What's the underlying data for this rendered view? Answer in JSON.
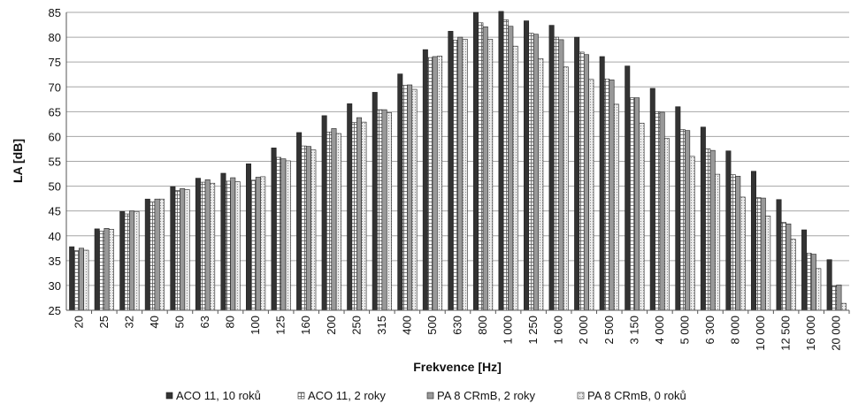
{
  "chart_data": {
    "type": "bar",
    "title": "",
    "xlabel": "Frekvence [Hz]",
    "ylabel": "LA [dB]",
    "ylim": [
      25,
      85
    ],
    "yticks": [
      25,
      30,
      35,
      40,
      45,
      50,
      55,
      60,
      65,
      70,
      75,
      80,
      85
    ],
    "grid": "horizontal",
    "legend_position": "bottom",
    "categories": [
      "20",
      "25",
      "32",
      "40",
      "50",
      "63",
      "80",
      "100",
      "125",
      "160",
      "200",
      "250",
      "315",
      "400",
      "500",
      "630",
      "800",
      "1 000",
      "1 250",
      "1 600",
      "2 000",
      "2 500",
      "3 150",
      "4 000",
      "5 000",
      "6 300",
      "8 000",
      "10 000",
      "12 500",
      "16 000",
      "20 000"
    ],
    "series": [
      {
        "name": "ACO 11, 10 roků",
        "color": "#333333",
        "pattern": "solid",
        "values": [
          37.8,
          41.4,
          44.9,
          47.4,
          49.9,
          51.6,
          52.6,
          54.5,
          57.7,
          60.8,
          64.2,
          66.6,
          68.9,
          72.6,
          77.5,
          81.2,
          85.0,
          85.2,
          83.3,
          82.4,
          80.0,
          76.1,
          74.2,
          69.7,
          66.0,
          61.9,
          57.1,
          53.0,
          47.3,
          41.2,
          35.2
        ]
      },
      {
        "name": "ACO 11, 2 roky",
        "color": "#ffffff",
        "pattern": "grid",
        "values": [
          37.0,
          40.9,
          44.4,
          46.8,
          49.1,
          50.8,
          51.0,
          51.2,
          55.8,
          58.1,
          60.9,
          62.8,
          65.4,
          70.3,
          75.9,
          79.4,
          82.9,
          83.5,
          80.8,
          80.0,
          77.0,
          71.6,
          67.8,
          65.0,
          61.4,
          57.5,
          52.3,
          47.7,
          42.7,
          36.5,
          29.9
        ]
      },
      {
        "name": "PA 8 CRmB, 2 roky",
        "color": "#999999",
        "pattern": "solid",
        "values": [
          37.5,
          41.5,
          45.0,
          47.4,
          49.5,
          51.3,
          51.7,
          51.8,
          55.5,
          58.0,
          61.6,
          63.8,
          65.4,
          70.4,
          76.1,
          80.0,
          82.1,
          82.2,
          80.6,
          79.5,
          76.5,
          71.4,
          67.8,
          64.9,
          61.2,
          57.2,
          52.0,
          47.6,
          42.4,
          36.3,
          30.1
        ]
      },
      {
        "name": "PA 8 CRmB, 0 roků",
        "color": "#e6e6e6",
        "pattern": "dots",
        "values": [
          37.1,
          41.3,
          44.9,
          47.4,
          49.3,
          50.6,
          50.9,
          51.9,
          55.1,
          57.3,
          60.6,
          62.9,
          64.8,
          69.5,
          76.2,
          79.6,
          79.6,
          78.2,
          75.7,
          74.0,
          71.5,
          66.5,
          62.7,
          59.6,
          56.0,
          52.4,
          47.8,
          44.0,
          39.3,
          33.4,
          26.4
        ]
      }
    ]
  }
}
